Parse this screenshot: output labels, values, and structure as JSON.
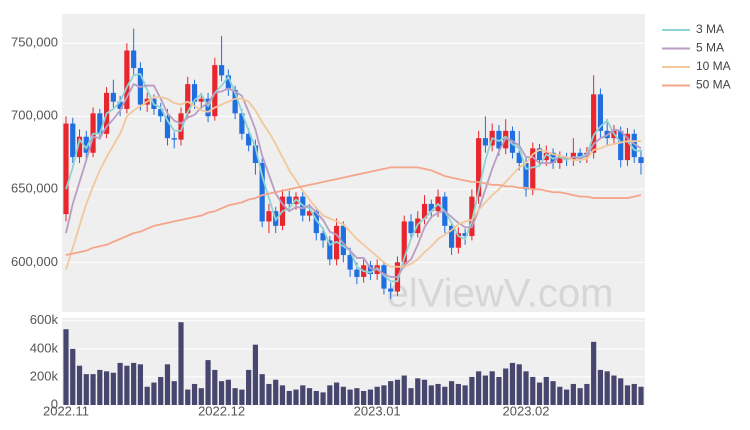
{
  "chart_data": [
    {
      "type": "candlestick",
      "up_color": "#e8262d",
      "down_color": "#1f6fe0",
      "watermark": "elViewV.com",
      "open": [
        633000,
        695000,
        672000,
        686000,
        675000,
        702000,
        688000,
        716000,
        710000,
        705000,
        745000,
        733000,
        708000,
        712000,
        705000,
        700000,
        685000,
        684000,
        702000,
        722000,
        710000,
        712000,
        700000,
        735000,
        728000,
        718000,
        702000,
        688000,
        680000,
        668000,
        628000,
        635000,
        625000,
        645000,
        640000,
        645000,
        632000,
        635000,
        620000,
        615000,
        602000,
        625000,
        605000,
        595000,
        590000,
        598000,
        592000,
        598000,
        582000,
        580000,
        600000,
        628000,
        620000,
        630000,
        640000,
        635000,
        645000,
        625000,
        610000,
        620000,
        618000,
        645000,
        685000,
        680000,
        690000,
        678000,
        690000,
        675000,
        668000,
        650000,
        678000,
        670000,
        675000,
        668000,
        672000,
        670000,
        675000,
        672000,
        675000,
        715000,
        690000,
        685000,
        690000,
        670000,
        688000,
        672000
      ],
      "high": [
        700000,
        699000,
        691000,
        690000,
        706000,
        705000,
        720000,
        725000,
        714000,
        750000,
        760000,
        737000,
        716000,
        715000,
        709000,
        705000,
        689000,
        706000,
        727000,
        725000,
        716000,
        716000,
        740000,
        755000,
        732000,
        721000,
        705000,
        692000,
        684000,
        671000,
        640000,
        638000,
        650000,
        649000,
        648000,
        648000,
        640000,
        638000,
        624000,
        618000,
        630000,
        628000,
        610000,
        600000,
        602000,
        601000,
        602000,
        600000,
        586000,
        604000,
        632000,
        633000,
        635000,
        646000,
        643000,
        650000,
        648000,
        628000,
        624000,
        623000,
        650000,
        690000,
        700000,
        695000,
        694000,
        698000,
        693000,
        690000,
        672000,
        682000,
        681000,
        680000,
        678000,
        676000,
        675000,
        685000,
        678000,
        679000,
        728000,
        719000,
        698000,
        694000,
        693000,
        692000,
        691000,
        677000
      ],
      "low": [
        628000,
        668000,
        668000,
        670000,
        672000,
        684000,
        685000,
        706000,
        700000,
        702000,
        728000,
        704000,
        703000,
        701000,
        696000,
        680000,
        678000,
        680000,
        699000,
        705000,
        706000,
        696000,
        697000,
        724000,
        714000,
        698000,
        684000,
        676000,
        660000,
        624000,
        620000,
        620000,
        622000,
        636000,
        636000,
        628000,
        628000,
        615000,
        610000,
        598000,
        598000,
        600000,
        590000,
        585000,
        586000,
        588000,
        588000,
        578000,
        575000,
        577000,
        596000,
        615000,
        617000,
        626000,
        630000,
        631000,
        620000,
        605000,
        606000,
        612000,
        615000,
        640000,
        675000,
        676000,
        673000,
        674000,
        671000,
        663000,
        645000,
        646000,
        666000,
        666000,
        664000,
        664000,
        666000,
        666000,
        668000,
        668000,
        671000,
        685000,
        680000,
        681000,
        665000,
        666000,
        668000,
        660000
      ],
      "close": [
        695000,
        672000,
        686000,
        675000,
        702000,
        688000,
        716000,
        710000,
        705000,
        745000,
        733000,
        708000,
        712000,
        705000,
        700000,
        685000,
        684000,
        702000,
        722000,
        710000,
        712000,
        700000,
        735000,
        728000,
        718000,
        702000,
        688000,
        680000,
        668000,
        628000,
        635000,
        625000,
        645000,
        640000,
        645000,
        632000,
        635000,
        620000,
        615000,
        602000,
        625000,
        605000,
        595000,
        590000,
        598000,
        592000,
        598000,
        582000,
        580000,
        600000,
        628000,
        620000,
        630000,
        640000,
        635000,
        645000,
        625000,
        610000,
        620000,
        618000,
        645000,
        685000,
        680000,
        690000,
        678000,
        690000,
        675000,
        668000,
        650000,
        678000,
        670000,
        675000,
        668000,
        672000,
        670000,
        675000,
        672000,
        675000,
        715000,
        690000,
        685000,
        690000,
        670000,
        688000,
        672000,
        668000
      ],
      "series": [
        {
          "name": "3 MA",
          "color": "#8fd3d3",
          "values": [
            650000,
            665000,
            684000,
            678000,
            688000,
            688000,
            702000,
            705000,
            710000,
            720000,
            728000,
            729000,
            718000,
            708000,
            706000,
            697000,
            690000,
            690000,
            703000,
            711000,
            715000,
            707000,
            716000,
            721000,
            727000,
            716000,
            703000,
            690000,
            679000,
            659000,
            644000,
            629000,
            635000,
            637000,
            643000,
            639000,
            637000,
            629000,
            623000,
            612000,
            614000,
            611000,
            608000,
            597000,
            594000,
            593000,
            596000,
            591000,
            587000,
            587000,
            603000,
            616000,
            626000,
            630000,
            635000,
            640000,
            635000,
            627000,
            618000,
            616000,
            628000,
            649000,
            670000,
            685000,
            683000,
            686000,
            681000,
            678000,
            664000,
            665000,
            666000,
            674000,
            671000,
            672000,
            670000,
            672000,
            672000,
            674000,
            687000,
            693000,
            697000,
            688000,
            682000,
            683000,
            677000,
            676000
          ]
        },
        {
          "name": "5 MA",
          "color": "#b89dc4",
          "values": [
            620000,
            640000,
            655000,
            670000,
            686000,
            685000,
            693000,
            698000,
            704000,
            713000,
            722000,
            720000,
            721000,
            721000,
            712000,
            702000,
            697000,
            695000,
            699000,
            701000,
            706000,
            709000,
            716000,
            717000,
            719000,
            717000,
            714000,
            703000,
            691000,
            673000,
            660000,
            647000,
            640000,
            635000,
            638000,
            637000,
            639000,
            634000,
            629000,
            621000,
            619000,
            613000,
            608000,
            603000,
            603000,
            596000,
            595000,
            592000,
            590000,
            590000,
            598000,
            602000,
            612000,
            624000,
            631000,
            634000,
            635000,
            631000,
            627000,
            624000,
            624000,
            636000,
            650000,
            664000,
            676000,
            685000,
            683000,
            680000,
            672000,
            672000,
            668000,
            668000,
            668000,
            673000,
            671000,
            672000,
            671000,
            673000,
            681000,
            685000,
            687000,
            691000,
            690000,
            685000,
            681000,
            678000
          ]
        },
        {
          "name": "10 MA",
          "color": "#f2c79a",
          "values": [
            595000,
            610000,
            625000,
            640000,
            652000,
            663000,
            672000,
            680000,
            688000,
            700000,
            704000,
            707000,
            710000,
            713000,
            713000,
            712000,
            709000,
            708000,
            710000,
            707000,
            704000,
            703000,
            706000,
            708000,
            710000,
            712000,
            712000,
            710000,
            704000,
            696000,
            689000,
            681000,
            672000,
            663000,
            656000,
            649000,
            643000,
            637000,
            632000,
            630000,
            628000,
            626000,
            621000,
            616000,
            612000,
            608000,
            604000,
            600000,
            597000,
            597000,
            597000,
            599000,
            602000,
            607000,
            611000,
            616000,
            619000,
            622000,
            626000,
            628000,
            629000,
            636000,
            641000,
            646000,
            650000,
            655000,
            660000,
            665000,
            668000,
            674000,
            677000,
            676000,
            674000,
            673000,
            672000,
            670000,
            670000,
            671000,
            677000,
            678000,
            680000,
            681000,
            682000,
            683000,
            683000,
            683000
          ]
        },
        {
          "name": "50 MA",
          "color": "#f4a58a",
          "values": [
            605000,
            606000,
            607000,
            608000,
            610000,
            611000,
            612000,
            614000,
            616000,
            618000,
            620000,
            621000,
            623000,
            625000,
            626000,
            627000,
            628000,
            629000,
            630000,
            631000,
            632000,
            634000,
            635000,
            637000,
            639000,
            640000,
            641000,
            643000,
            644000,
            646000,
            647000,
            648000,
            649000,
            650000,
            651000,
            652000,
            653000,
            654000,
            655000,
            656000,
            657000,
            658000,
            659000,
            660000,
            661000,
            662000,
            663000,
            664000,
            665000,
            665000,
            665000,
            665000,
            665000,
            664000,
            663000,
            661000,
            659000,
            658000,
            657000,
            656000,
            655000,
            655000,
            654000,
            653000,
            653000,
            652000,
            652000,
            651000,
            651000,
            650000,
            650000,
            649000,
            648000,
            648000,
            647000,
            646000,
            645000,
            645000,
            644000,
            644000,
            644000,
            644000,
            644000,
            644000,
            645000,
            646000
          ]
        }
      ],
      "ylim": [
        566000,
        770000
      ],
      "yticks": [
        {
          "value": 600000,
          "label": "600,000"
        },
        {
          "value": 650000,
          "label": "650,000"
        },
        {
          "value": 700000,
          "label": "700,000"
        },
        {
          "value": 750000,
          "label": "750,000"
        }
      ],
      "grid": true,
      "legend": "right"
    },
    {
      "type": "bar",
      "color": "#46466e",
      "x": [
        "2022.11",
        null,
        null,
        null,
        null,
        null,
        null,
        null,
        null,
        null,
        null,
        null,
        null,
        null,
        null,
        null,
        null,
        null,
        null,
        null,
        null,
        null,
        null,
        "2022.12",
        null,
        null,
        null,
        null,
        null,
        null,
        null,
        null,
        null,
        null,
        null,
        null,
        null,
        null,
        null,
        null,
        null,
        null,
        null,
        null,
        null,
        null,
        "2023.01",
        null,
        null,
        null,
        null,
        null,
        null,
        null,
        null,
        null,
        null,
        null,
        null,
        null,
        null,
        null,
        null,
        null,
        null,
        null,
        null,
        null,
        "2023.02",
        null,
        null,
        null,
        null,
        null,
        null,
        null,
        null,
        null,
        null,
        null,
        null,
        null,
        null,
        null,
        null,
        null
      ],
      "values": [
        540000,
        400000,
        280000,
        220000,
        220000,
        250000,
        240000,
        230000,
        300000,
        280000,
        300000,
        290000,
        130000,
        160000,
        200000,
        290000,
        170000,
        590000,
        110000,
        150000,
        120000,
        320000,
        250000,
        170000,
        180000,
        120000,
        110000,
        250000,
        430000,
        220000,
        150000,
        180000,
        140000,
        100000,
        110000,
        140000,
        120000,
        100000,
        90000,
        140000,
        160000,
        130000,
        110000,
        120000,
        100000,
        110000,
        130000,
        140000,
        170000,
        180000,
        210000,
        120000,
        190000,
        180000,
        140000,
        150000,
        130000,
        170000,
        150000,
        140000,
        200000,
        240000,
        210000,
        240000,
        200000,
        260000,
        300000,
        290000,
        240000,
        200000,
        160000,
        200000,
        170000,
        130000,
        110000,
        150000,
        120000,
        150000,
        450000,
        250000,
        240000,
        210000,
        190000,
        140000,
        150000,
        130000
      ],
      "ylim": [
        0,
        620000
      ],
      "yticks": [
        0,
        {
          "value": 200000,
          "label": "200k"
        },
        {
          "value": 400000,
          "label": "400k"
        },
        {
          "value": 600000,
          "label": "600k"
        }
      ],
      "grid": true
    }
  ]
}
